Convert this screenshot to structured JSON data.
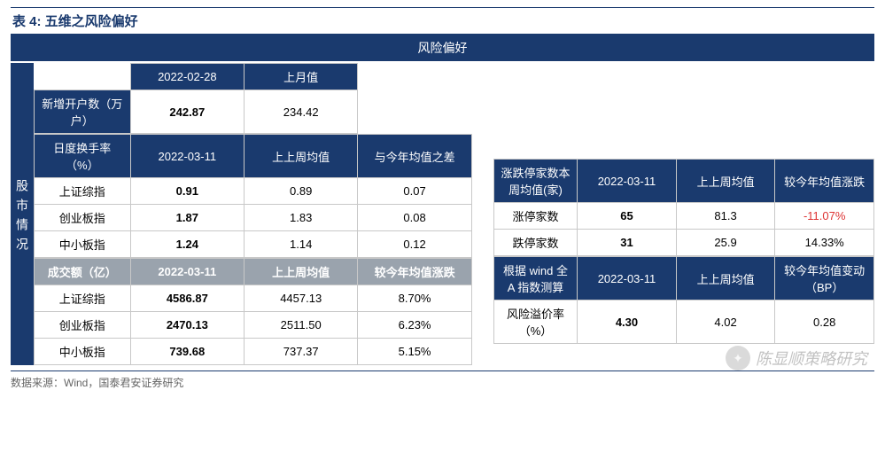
{
  "title": "表 4:  五维之风险偏好",
  "banner": "风险偏好",
  "vlabel": "股市情况",
  "source": "数据来源：Wind，国泰君安证券研究",
  "watermark": "陈显顺策略研究",
  "left": {
    "t1": {
      "hdate": "2022-02-28",
      "hprev": "上月值",
      "rowlabel": "新增开户数（万户）",
      "v1": "242.87",
      "v2": "234.42"
    },
    "t2": {
      "h0": "日度换手率（%）",
      "h1": "2022-03-11",
      "h2": "上上周均值",
      "h3": "与今年均值之差",
      "rows": [
        {
          "n": "上证综指",
          "a": "0.91",
          "b": "0.89",
          "c": "0.07"
        },
        {
          "n": "创业板指",
          "a": "1.87",
          "b": "1.83",
          "c": "0.08"
        },
        {
          "n": "中小板指",
          "a": "1.24",
          "b": "1.14",
          "c": "0.12"
        }
      ]
    },
    "t3": {
      "h0": "成交额（亿）",
      "h1": "2022-03-11",
      "h2": "上上周均值",
      "h3": "较今年均值涨跌",
      "rows": [
        {
          "n": "上证综指",
          "a": "4586.87",
          "b": "4457.13",
          "c": "8.70%"
        },
        {
          "n": "创业板指",
          "a": "2470.13",
          "b": "2511.50",
          "c": "6.23%"
        },
        {
          "n": "中小板指",
          "a": "739.68",
          "b": "737.37",
          "c": "5.15%"
        }
      ]
    }
  },
  "right": {
    "t1": {
      "h0": "涨跌停家数本周均值(家)",
      "h1": "2022-03-11",
      "h2": "上上周均值",
      "h3": "较今年均值涨跌",
      "rows": [
        {
          "n": "涨停家数",
          "a": "65",
          "b": "81.3",
          "c": "-11.07%",
          "neg": true
        },
        {
          "n": "跌停家数",
          "a": "31",
          "b": "25.9",
          "c": "14.33%"
        }
      ]
    },
    "t2": {
      "h0": "根据 wind 全A 指数测算",
      "h1": "2022-03-11",
      "h2": "上上周均值",
      "h3": "较今年均值变动（BP）",
      "rows": [
        {
          "n": "风险溢价率（%）",
          "a": "4.30",
          "b": "4.02",
          "c": "0.28"
        }
      ]
    }
  }
}
